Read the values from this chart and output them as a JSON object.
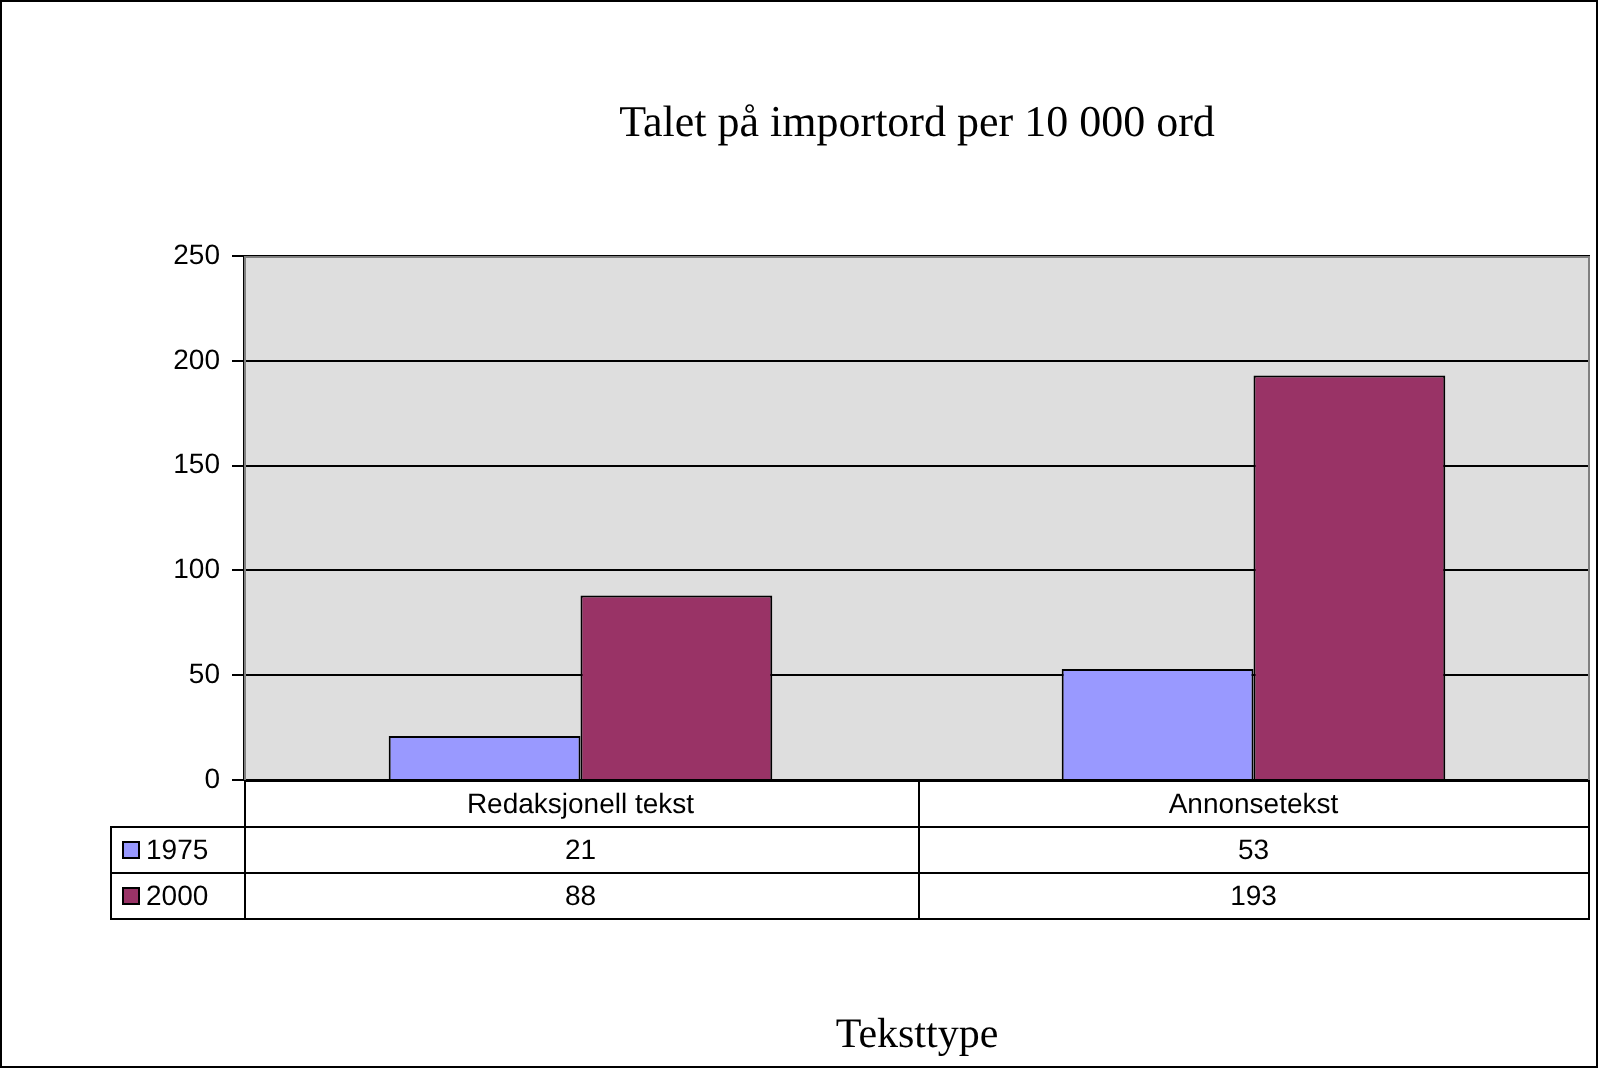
{
  "chart_data": {
    "type": "bar",
    "title": "Talet på importord per 10 000 ord",
    "xlabel": "Teksttype",
    "categories": [
      "Redaksjonell tekst",
      "Annonsetekst"
    ],
    "series": [
      {
        "name": "1975",
        "color": "#9999ff",
        "values": [
          21,
          53
        ]
      },
      {
        "name": "2000",
        "color": "#993366",
        "values": [
          88,
          193
        ]
      }
    ],
    "ylim": [
      0,
      250
    ],
    "yticks": [
      0,
      50,
      100,
      150,
      200,
      250
    ],
    "grid": "y",
    "legend": "bottom left",
    "data_labels": true
  }
}
